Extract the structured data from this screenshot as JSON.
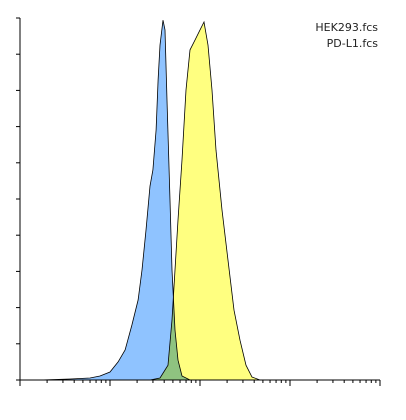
{
  "chart_data": {
    "type": "area",
    "legend_position": "upper right",
    "xscale": "log",
    "xlim": [
      1,
      10000
    ],
    "xticks": [
      1,
      2,
      3,
      4,
      5,
      6,
      7,
      8,
      9,
      10,
      20,
      30,
      40,
      50,
      60,
      70,
      80,
      90,
      100,
      200,
      300,
      400,
      500,
      600,
      700,
      800,
      900,
      1000,
      2000,
      3000,
      4000,
      5000,
      6000,
      7000,
      8000,
      9000,
      10000
    ],
    "ylim": [
      0,
      100
    ],
    "yticks": [
      0,
      10,
      20,
      30,
      40,
      50,
      60,
      70,
      80,
      90,
      100
    ],
    "series": [
      {
        "name": "HEK293.fcs",
        "color": "#8fc3ff",
        "x": [
          1.67,
          3.59,
          6.0,
          7.74,
          10,
          12.3,
          14.7,
          17.5,
          20.5,
          22.7,
          25.1,
          27.8,
          30.0,
          32.5,
          34.2,
          35.9,
          38.8,
          40.8,
          43.0,
          46.4,
          48.9,
          52.7,
          57.0,
          63.1,
          77.4
        ],
        "values": [
          0,
          0.28,
          0.55,
          1.1,
          2.2,
          5.0,
          8.3,
          15.2,
          22.1,
          30.4,
          41.4,
          53.6,
          58.0,
          69.1,
          82.9,
          92.5,
          99.4,
          96.7,
          77.3,
          49.7,
          30.4,
          13.8,
          5.5,
          1.1,
          0
        ]
      },
      {
        "name": "PD-L1.fcs",
        "color": "#ffff80",
        "x": [
          27.8,
          35.9,
          44.1,
          48.9,
          52.7,
          57.0,
          63.1,
          69.9,
          77.4,
          88.0,
          100,
          110.8,
          122.7,
          135.9,
          150.6,
          175.5,
          204.7,
          238.6,
          278.3,
          324.3,
          378.3,
          464.2
        ],
        "values": [
          0,
          0.55,
          4.1,
          16.6,
          30.4,
          44.2,
          60.8,
          80.1,
          91.2,
          93.9,
          96.7,
          98.9,
          92.5,
          80.1,
          63.5,
          47.0,
          33.1,
          19.3,
          11.0,
          4.1,
          0.83,
          0
        ]
      }
    ]
  }
}
